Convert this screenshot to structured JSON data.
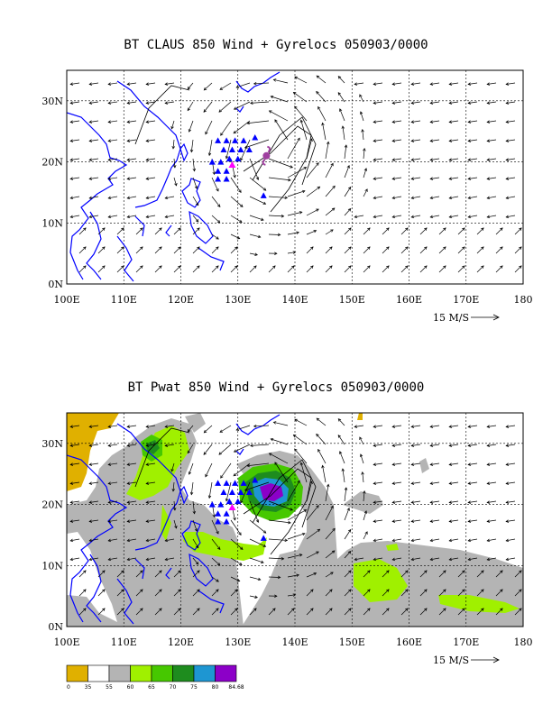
{
  "panels": [
    {
      "title": "BT CLAUS 850 Wind + Gyrelocs 050903/0000"
    },
    {
      "title": "BT Pwat 850 Wind + Gyrelocs 050903/0000"
    }
  ],
  "axes": {
    "lon_labels": [
      "100E",
      "110E",
      "120E",
      "130E",
      "140E",
      "150E",
      "160E",
      "170E",
      "180"
    ],
    "lat_labels": [
      "0N",
      "10N",
      "20N",
      "30N"
    ]
  },
  "vector_reference": {
    "label": "15 M/S"
  },
  "colorbar": {
    "labels": [
      "0",
      "35",
      "55",
      "60",
      "65",
      "70",
      "75",
      "80",
      "84.68"
    ],
    "colors": [
      "#e0b000",
      "#ffffff",
      "#b4b4b4",
      "#a0f000",
      "#46c800",
      "#1e8c1e",
      "#1e96d2",
      "#8c00c8"
    ]
  },
  "colors": {
    "coast": "#0000ff",
    "gyre_marker": "#0000ff",
    "center_marker": "#ff00ff",
    "typhoon_symbol": "#a040a0"
  },
  "chart_data": {
    "type": "map",
    "lon_range": [
      100,
      180
    ],
    "lat_range": [
      0,
      35
    ],
    "gyre_locations": [
      [
        126.5,
        23.5
      ],
      [
        128,
        23.5
      ],
      [
        129.5,
        23.5
      ],
      [
        131,
        23.5
      ],
      [
        133,
        24
      ],
      [
        127.5,
        22
      ],
      [
        129,
        22
      ],
      [
        130.5,
        22
      ],
      [
        132,
        22
      ],
      [
        125.5,
        20
      ],
      [
        127,
        20
      ],
      [
        128.5,
        20.5
      ],
      [
        130,
        20.5
      ],
      [
        126.5,
        18.5
      ],
      [
        128,
        18.5
      ],
      [
        126.5,
        17.2
      ],
      [
        128,
        17.2
      ],
      [
        134.5,
        14.5
      ]
    ],
    "center_location": [
      129,
      19.5
    ],
    "typhoon_location": [
      135,
      21
    ]
  }
}
